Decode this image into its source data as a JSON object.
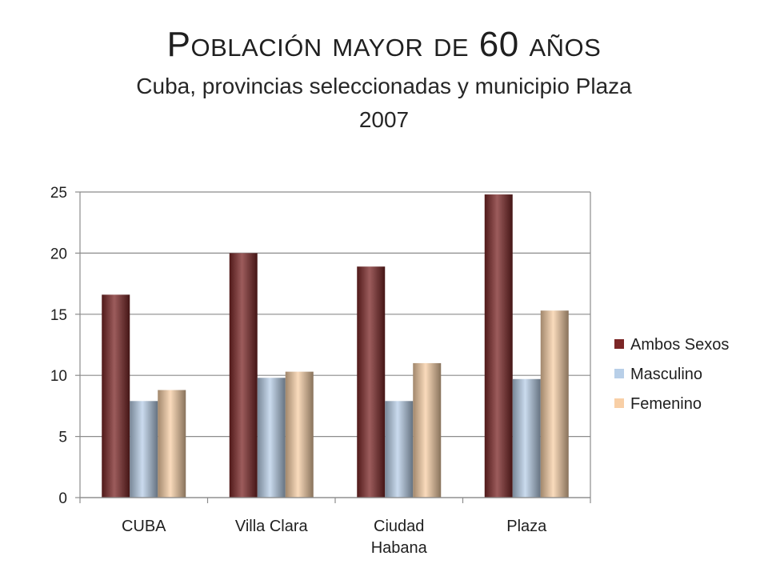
{
  "title": "Población mayor de 60 años",
  "subtitle": "Cuba, provincias seleccionadas y municipio Plaza",
  "year": "2007",
  "chart_data": {
    "type": "bar",
    "title": "Población mayor de 60 años",
    "subtitle": "Cuba, provincias seleccionadas y municipio Plaza 2007",
    "categories": [
      [
        "CUBA"
      ],
      [
        "Villa Clara"
      ],
      [
        "Ciudad",
        "Habana"
      ],
      [
        "Plaza"
      ]
    ],
    "series": [
      {
        "name": "Ambos Sexos",
        "values": [
          16.6,
          20.0,
          18.9,
          24.8
        ],
        "color": "#7b2626"
      },
      {
        "name": "Masculino",
        "values": [
          7.9,
          9.8,
          7.9,
          9.7
        ],
        "color": "#b8cfe8"
      },
      {
        "name": "Femenino",
        "values": [
          8.8,
          10.3,
          11.0,
          15.3
        ],
        "color": "#f8cfa6"
      }
    ],
    "ylim": [
      0,
      25
    ],
    "yticks": [
      0,
      5,
      10,
      15,
      20,
      25
    ],
    "xlabel": "",
    "ylabel": "",
    "grid": true,
    "legend": "right"
  }
}
